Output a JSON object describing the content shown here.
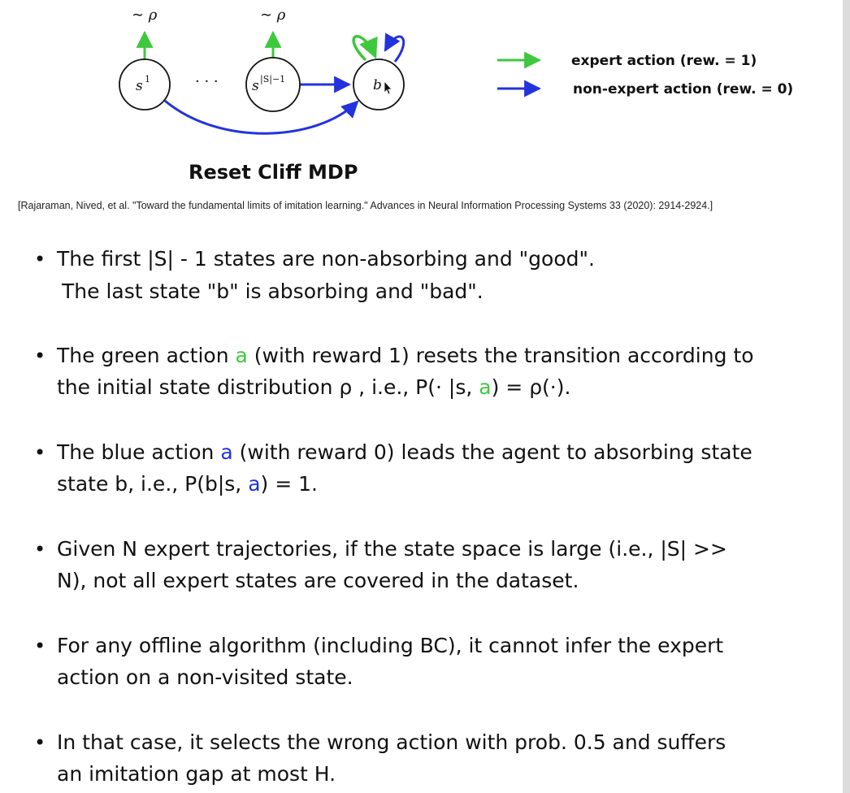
{
  "colors": {
    "expert_green": "#3ec83e",
    "nonexpert_blue": "#2233dd",
    "text": "#111111"
  },
  "diagram": {
    "nodes": {
      "first": {
        "base": "s",
        "sup": "1"
      },
      "last_good": {
        "base": "s",
        "sup": "|S|−1"
      },
      "bad": {
        "label": "b"
      }
    },
    "rho_label_1": "∼ ρ",
    "rho_label_2": "∼ ρ",
    "dots": "· · ·",
    "legend": {
      "expert": "expert action (rew. = 1)",
      "nonexpert": "non-expert action (rew. = 0)"
    }
  },
  "title": "Reset Cliff MDP",
  "citation": "[Rajaraman, Nived, et al. \"Toward the fundamental limits of imitation learning.\" Advances in Neural Information Processing Systems 33 (2020): 2914-2924.]",
  "bullets": {
    "b1": {
      "line1": "The first |S| - 1 states are non-absorbing and \"good\".",
      "line2": "The last state \"b\" is absorbing and \"bad\"."
    },
    "b2": {
      "l1_pre": "The green action ",
      "l1_a": "a",
      "l1_post": " (with reward 1) resets the transition according to",
      "l2_pre": "the initial state distribution ρ , i.e., P(· |s, ",
      "l2_a": "a",
      "l2_post": ") = ρ(·)."
    },
    "b3": {
      "l1_pre": "The blue action ",
      "l1_a": "a",
      "l1_post": " (with reward 0) leads the agent to absorbing state",
      "l2_pre": "state b, i.e., P(b|s, ",
      "l2_a": "a",
      "l2_post": ") = 1."
    },
    "b4": {
      "line1": "Given N expert trajectories, if the state space is large (i.e., |S| >>",
      "line2": "N), not all expert states are covered in the dataset."
    },
    "b5": {
      "line1": "For any offline algorithm (including BC), it cannot infer the expert",
      "line2": "action on a non-visited state."
    },
    "b6": {
      "line1": "In that case, it selects the wrong action with prob. 0.5 and suffers",
      "line2": "an imitation gap at most H."
    },
    "dot": "•"
  }
}
